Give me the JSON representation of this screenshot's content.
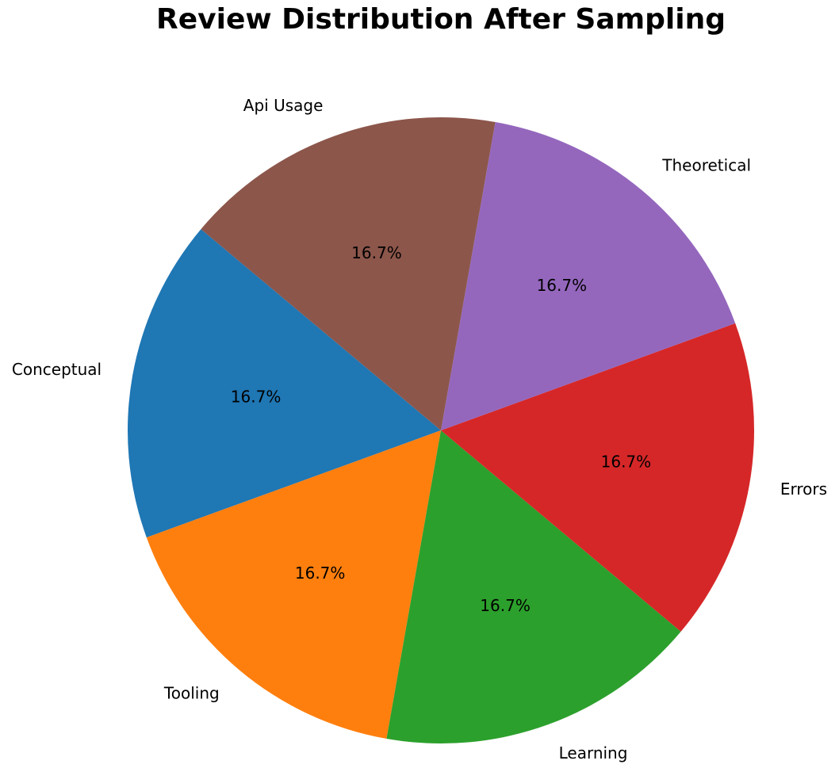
{
  "chart_data": {
    "type": "pie",
    "title": "Review Distribution After Sampling",
    "categories": [
      "Conceptual",
      "Tooling",
      "Learning",
      "Errors",
      "Theoretical",
      "Api Usage"
    ],
    "values": [
      16.7,
      16.7,
      16.7,
      16.7,
      16.7,
      16.7
    ],
    "value_labels": [
      "16.7%",
      "16.7%",
      "16.7%",
      "16.7%",
      "16.7%",
      "16.7%"
    ],
    "colors": [
      "#1f77b4",
      "#ff7f0e",
      "#2ca02c",
      "#d62728",
      "#9467bd",
      "#8c564b"
    ],
    "startangle": 140
  }
}
